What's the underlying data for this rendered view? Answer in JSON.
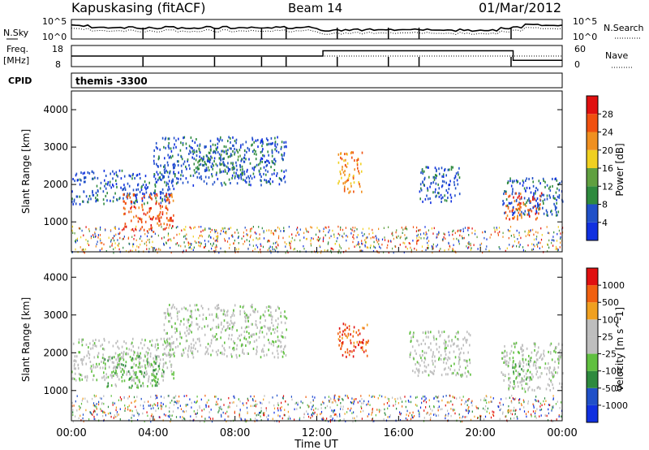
{
  "header": {
    "station": "Kapuskasing (fitACF)",
    "beam": "Beam 14",
    "date": "01/Mar/2012"
  },
  "noise_panel": {
    "left_label": "N.Sky",
    "left_ticks": [
      "10^5",
      "10^0"
    ],
    "right_ticks": [
      "10^5",
      "10^0"
    ],
    "right_label": "N.Search"
  },
  "freq_panel": {
    "left_label_1": "Freq.",
    "left_label_2": "[MHz]",
    "left_ticks": [
      "18",
      "8"
    ],
    "right_ticks": [
      "60",
      "0"
    ],
    "right_label": "Nave"
  },
  "cpid": {
    "label": "CPID",
    "value": "themis -3300"
  },
  "colors": {
    "power": [
      "#1030e0",
      "#2050c8",
      "#2e8a3e",
      "#60a040",
      "#f0d020",
      "#f09020",
      "#f05010",
      "#e01010"
    ],
    "velocity": [
      "#1030e0",
      "#2050c8",
      "#2e8a3e",
      "#60c040",
      "#bebebe",
      "#bebebe",
      "#f0a020",
      "#f06010",
      "#e01010"
    ]
  },
  "chart_data": [
    {
      "type": "heatmap",
      "name": "power",
      "ylabel": "Slant Range [km]",
      "yticks": [
        "1000",
        "2000",
        "3000",
        "4000"
      ],
      "ylim": [
        200,
        4500
      ],
      "colorbar_label": "Power [dB]",
      "colorbar_ticks": [
        "4",
        "8",
        "12",
        "16",
        "20",
        "24",
        "28"
      ],
      "regions": [
        {
          "x": [
            0.0,
            5.0
          ],
          "y": [
            1500,
            2400
          ],
          "level": 1
        },
        {
          "x": [
            2.5,
            5.0
          ],
          "y": [
            800,
            1800
          ],
          "level": 6
        },
        {
          "x": [
            4.0,
            10.5
          ],
          "y": [
            2000,
            3300
          ],
          "level": 1
        },
        {
          "x": [
            6.0,
            8.5
          ],
          "y": [
            2300,
            3000
          ],
          "level": 2
        },
        {
          "x": [
            13.0,
            14.2
          ],
          "y": [
            1800,
            2900
          ],
          "level": 5
        },
        {
          "x": [
            17.0,
            19.0
          ],
          "y": [
            1500,
            2500
          ],
          "level": 1
        },
        {
          "x": [
            21.0,
            24.0
          ],
          "y": [
            1200,
            2200
          ],
          "level": 1
        },
        {
          "x": [
            21.2,
            23.0
          ],
          "y": [
            1100,
            1800
          ],
          "level": 6
        }
      ]
    },
    {
      "type": "heatmap",
      "name": "velocity",
      "ylabel": "Slant Range [km]",
      "xlabel": "Time UT",
      "xticks": [
        "00:00",
        "04:00",
        "08:00",
        "12:00",
        "16:00",
        "20:00",
        "00:00"
      ],
      "xlim": [
        0,
        24
      ],
      "yticks": [
        "1000",
        "2000",
        "3000",
        "4000"
      ],
      "ylim": [
        200,
        4500
      ],
      "colorbar_label": "Velocity [m s^-1]",
      "colorbar_ticks": [
        "1000",
        "500",
        "100",
        "25",
        "-25",
        "-100",
        "-500",
        "-1000"
      ],
      "regions": [
        {
          "x": [
            0.0,
            5.0
          ],
          "y": [
            1300,
            2400
          ],
          "level": 4
        },
        {
          "x": [
            1.5,
            4.5
          ],
          "y": [
            1100,
            2000
          ],
          "level": 3
        },
        {
          "x": [
            4.5,
            10.5
          ],
          "y": [
            1900,
            3300
          ],
          "level": 4
        },
        {
          "x": [
            13.0,
            14.5
          ],
          "y": [
            1900,
            2800
          ],
          "level": 7
        },
        {
          "x": [
            16.5,
            19.5
          ],
          "y": [
            1400,
            2600
          ],
          "level": 4
        },
        {
          "x": [
            21.0,
            24.0
          ],
          "y": [
            1000,
            2300
          ],
          "level": 4
        },
        {
          "x": [
            21.5,
            22.5
          ],
          "y": [
            1200,
            1900
          ],
          "level": 3
        }
      ]
    }
  ]
}
